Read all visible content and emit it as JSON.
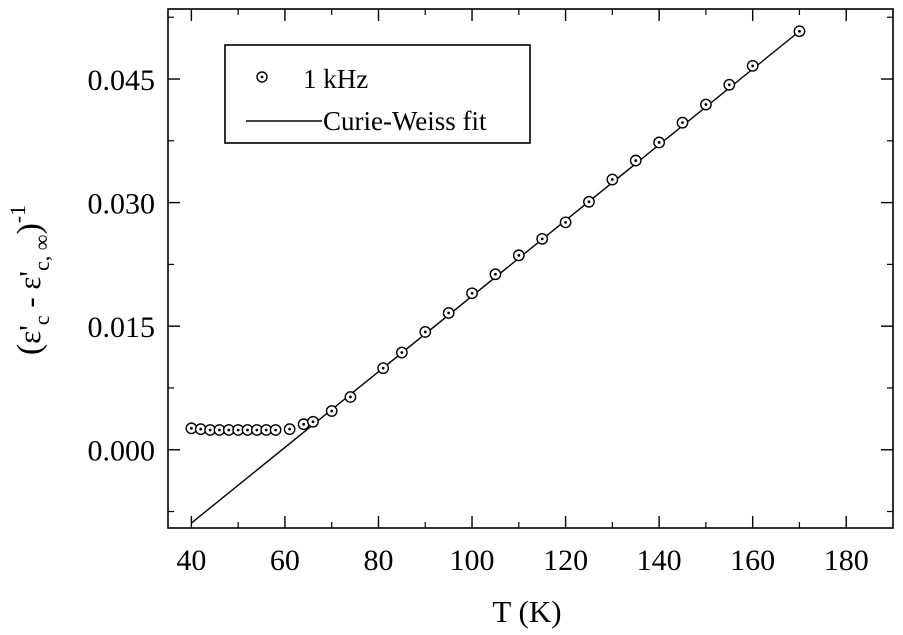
{
  "chart_data": {
    "type": "scatter",
    "title": "",
    "xlabel": "T (K)",
    "ylabel": {
      "open": "(",
      "t1": "ε",
      "t1_prime": "'",
      "t1_sub": "c",
      "minus": " - ",
      "t2": "ε",
      "t2_prime": "'",
      "t2_sub": "c, ∞",
      "close": ")",
      "power": "-1"
    },
    "xlim": [
      35,
      190
    ],
    "ylim": [
      -0.0095,
      0.0535
    ],
    "xticks": [
      40,
      60,
      80,
      100,
      120,
      140,
      160,
      180
    ],
    "yticks": [
      0.0,
      0.015,
      0.03,
      0.045
    ],
    "ytick_labels": [
      "0.000",
      "0.015",
      "0.030",
      "0.045"
    ],
    "series": [
      {
        "name": "1 kHz",
        "marker": "circle-dot",
        "x": [
          40,
          42,
          44,
          46,
          48,
          50,
          52,
          54,
          56,
          58,
          61,
          64,
          66,
          70,
          74,
          81,
          85,
          90,
          95,
          100,
          105,
          110,
          115,
          120,
          125,
          130,
          135,
          140,
          145,
          150,
          155,
          160,
          170
        ],
        "y": [
          0.0026,
          0.0025,
          0.0024,
          0.0024,
          0.0024,
          0.0024,
          0.0024,
          0.0024,
          0.0024,
          0.0024,
          0.0025,
          0.0031,
          0.0034,
          0.0047,
          0.0064,
          0.0099,
          0.0118,
          0.0143,
          0.0166,
          0.019,
          0.0213,
          0.0236,
          0.0256,
          0.0276,
          0.0301,
          0.0328,
          0.0351,
          0.0373,
          0.0397,
          0.0419,
          0.0443,
          0.0466,
          0.0508
        ]
      },
      {
        "name": "Curie-Weiss fit",
        "marker": "line",
        "x": [
          40,
          170
        ],
        "y": [
          -0.0089,
          0.0508
        ]
      }
    ],
    "legend": {
      "position": "top-left"
    },
    "grid": false,
    "colors": {
      "axis": "#000000",
      "marker": "#000000",
      "line": "#000000"
    }
  }
}
